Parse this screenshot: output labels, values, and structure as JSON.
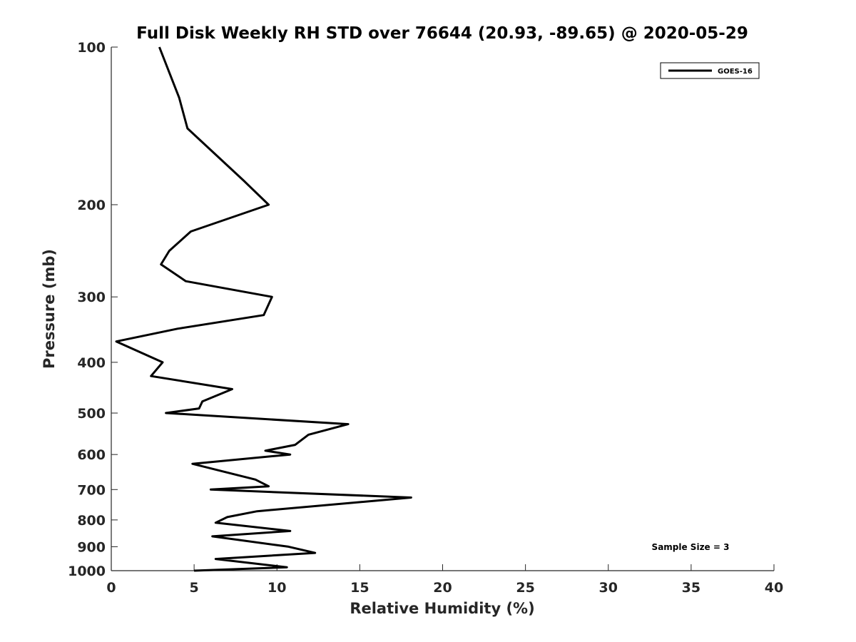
{
  "chart_data": {
    "type": "line",
    "title": "Full Disk Weekly RH STD over 76644 (20.93, -89.65) @ 2020-05-29",
    "xlabel": "Relative Humidity (%)",
    "ylabel": "Pressure (mb)",
    "xlim": [
      0,
      40
    ],
    "ylim": [
      100,
      1000
    ],
    "yscale": "log",
    "y_reversed": true,
    "grid": false,
    "legend_placement": "top-right",
    "x_ticks": [
      "0",
      "5",
      "10",
      "15",
      "20",
      "25",
      "30",
      "35",
      "40"
    ],
    "y_ticks": [
      "100",
      "200",
      "300",
      "400",
      "500",
      "600",
      "700",
      "800",
      "900",
      "1000"
    ],
    "series": [
      {
        "name": "GOES-16",
        "color": "#000000",
        "x": [
          2.9,
          4.1,
          4.6,
          8.0,
          9.5,
          4.8,
          3.5,
          3.0,
          4.5,
          9.7,
          9.2,
          4.0,
          0.3,
          3.1,
          2.4,
          7.3,
          5.5,
          5.3,
          3.3,
          14.3,
          11.9,
          11.1,
          9.3,
          10.8,
          4.9,
          8.7,
          9.5,
          6.0,
          18.1,
          8.8,
          7.0,
          6.3,
          10.8,
          6.1,
          10.7,
          12.3,
          6.3,
          10.6,
          5.0
        ],
        "y": [
          100,
          125,
          143,
          180,
          200,
          225,
          245,
          260,
          280,
          300,
          325,
          345,
          365,
          400,
          425,
          450,
          475,
          490,
          500,
          525,
          550,
          575,
          590,
          600,
          625,
          670,
          690,
          700,
          725,
          770,
          790,
          810,
          840,
          860,
          900,
          925,
          950,
          985,
          1000
        ]
      }
    ],
    "annotations": [
      "Sample Size = 3"
    ]
  }
}
